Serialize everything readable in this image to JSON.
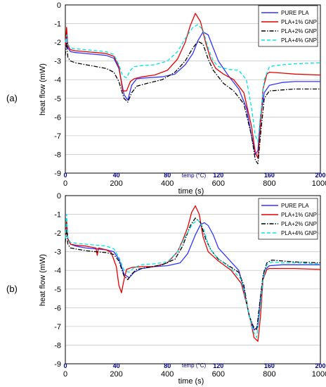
{
  "colors": {
    "pure_pla": "#3333ff",
    "pla_1_gnp": "#e60000",
    "pla_2_gnp": "#000000",
    "pla_4_gnp": "#00e5e5",
    "temp_axis": "#00008b",
    "grid": "#c8c8c8"
  },
  "chart_data": [
    {
      "panel_label": "(a)",
      "type": "line",
      "title": "",
      "ylabel": "heat flow (mW)",
      "xlabel": "time (s)",
      "xlim": [
        0,
        1000
      ],
      "ylim": [
        -9,
        0
      ],
      "xticks": [
        0,
        200,
        400,
        600,
        800,
        1000
      ],
      "yticks": [
        0,
        -1,
        -2,
        -3,
        -4,
        -5,
        -6,
        -7,
        -8,
        -9
      ],
      "grid": "horizontal",
      "legend_position": "top-right",
      "temp_axis": {
        "label": "temp (°C)",
        "ticks": [
          "0",
          "40",
          "80",
          "120",
          "160",
          "200"
        ]
      },
      "series": [
        {
          "name": "PURE PLA",
          "style": "solid",
          "color_key": "pure_pla",
          "x": [
            0,
            5,
            10,
            20,
            40,
            80,
            120,
            160,
            190,
            210,
            230,
            245,
            260,
            280,
            320,
            380,
            430,
            470,
            500,
            520,
            540,
            560,
            580,
            600,
            640,
            680,
            710,
            730,
            745,
            755,
            765,
            780,
            800,
            850,
            900,
            1000
          ],
          "y": [
            -2.3,
            -1.5,
            -2.3,
            -2.5,
            -2.55,
            -2.6,
            -2.65,
            -2.7,
            -2.85,
            -3.4,
            -4.8,
            -5.1,
            -4.3,
            -3.95,
            -3.9,
            -3.85,
            -3.7,
            -3.2,
            -2.6,
            -1.9,
            -1.45,
            -1.6,
            -2.3,
            -3.0,
            -3.8,
            -4.5,
            -5.5,
            -7.0,
            -8.0,
            -7.8,
            -6.0,
            -4.7,
            -4.3,
            -4.15,
            -4.1,
            -4.1
          ]
        },
        {
          "name": "PLA+1% GNP",
          "style": "solid",
          "color_key": "pla_1_gnp",
          "x": [
            0,
            5,
            10,
            20,
            40,
            80,
            120,
            160,
            190,
            210,
            225,
            240,
            255,
            270,
            300,
            350,
            400,
            440,
            470,
            490,
            510,
            530,
            550,
            570,
            590,
            620,
            660,
            700,
            730,
            745,
            755,
            765,
            775,
            790,
            800,
            850,
            900,
            1000
          ],
          "y": [
            -2.2,
            -1.2,
            -2.2,
            -2.4,
            -2.45,
            -2.5,
            -2.55,
            -2.6,
            -2.75,
            -3.3,
            -4.6,
            -4.6,
            -4.1,
            -3.95,
            -3.85,
            -3.75,
            -3.5,
            -2.9,
            -2.0,
            -1.1,
            -0.45,
            -0.9,
            -2.0,
            -2.9,
            -3.4,
            -3.7,
            -4.0,
            -4.7,
            -6.5,
            -7.9,
            -8.2,
            -6.5,
            -4.5,
            -3.7,
            -3.6,
            -3.65,
            -3.7,
            -3.75
          ]
        },
        {
          "name": "PLA+2% GNP",
          "style": "dashdot",
          "color_key": "pla_2_gnp",
          "x": [
            0,
            5,
            10,
            20,
            40,
            80,
            120,
            160,
            190,
            210,
            230,
            245,
            260,
            280,
            320,
            380,
            430,
            470,
            500,
            520,
            540,
            560,
            580,
            620,
            660,
            700,
            730,
            745,
            755,
            765,
            780,
            800,
            850,
            900,
            1000
          ],
          "y": [
            -2.7,
            -2.0,
            -2.8,
            -3.0,
            -3.1,
            -3.2,
            -3.3,
            -3.4,
            -3.6,
            -4.1,
            -5.0,
            -5.2,
            -4.7,
            -4.35,
            -4.2,
            -4.0,
            -3.6,
            -3.0,
            -2.3,
            -1.95,
            -2.1,
            -2.9,
            -3.5,
            -4.2,
            -4.6,
            -5.3,
            -7.0,
            -8.3,
            -8.5,
            -7.0,
            -5.0,
            -4.6,
            -4.55,
            -4.5,
            -4.5
          ]
        },
        {
          "name": "PLA+4% GNP",
          "style": "dashed",
          "color_key": "pla_4_gnp",
          "x": [
            0,
            5,
            10,
            20,
            40,
            80,
            120,
            160,
            190,
            210,
            225,
            240,
            255,
            270,
            300,
            350,
            400,
            440,
            470,
            500,
            520,
            540,
            560,
            580,
            600,
            640,
            680,
            710,
            730,
            745,
            755,
            765,
            780,
            800,
            850,
            900,
            1000
          ],
          "y": [
            -2.0,
            -1.6,
            -2.1,
            -2.3,
            -2.35,
            -2.4,
            -2.45,
            -2.5,
            -2.65,
            -3.2,
            -3.8,
            -3.9,
            -3.5,
            -3.3,
            -3.25,
            -3.2,
            -3.0,
            -2.5,
            -1.8,
            -1.2,
            -1.05,
            -1.35,
            -2.3,
            -3.0,
            -3.3,
            -3.45,
            -3.5,
            -4.0,
            -5.5,
            -7.0,
            -7.3,
            -6.0,
            -4.0,
            -3.3,
            -3.2,
            -3.15,
            -3.1
          ]
        }
      ]
    },
    {
      "panel_label": "(b)",
      "type": "line",
      "title": "",
      "ylabel": "heat flow (mW)",
      "xlabel": "time (s)",
      "xlim": [
        0,
        1000
      ],
      "ylim": [
        -9,
        0
      ],
      "xticks": [
        0,
        200,
        400,
        600,
        800,
        1000
      ],
      "yticks": [
        0,
        -1,
        -2,
        -3,
        -4,
        -5,
        -6,
        -7,
        -8,
        -9
      ],
      "grid": "horizontal",
      "legend_position": "top-right",
      "temp_axis": {
        "label": "temp (°C)",
        "ticks": [
          "0",
          "40",
          "80",
          "120",
          "160",
          "200"
        ]
      },
      "series": [
        {
          "name": "PURE PLA",
          "style": "solid",
          "color_key": "pure_pla",
          "x": [
            0,
            5,
            10,
            20,
            40,
            80,
            120,
            160,
            190,
            210,
            230,
            250,
            270,
            300,
            350,
            400,
            450,
            480,
            510,
            530,
            545,
            560,
            580,
            600,
            640,
            680,
            700,
            720,
            740,
            755,
            765,
            780,
            800,
            850,
            900,
            1000
          ],
          "y": [
            -2.3,
            -1.4,
            -2.3,
            -2.6,
            -2.7,
            -2.8,
            -2.85,
            -2.9,
            -3.0,
            -3.4,
            -4.2,
            -4.4,
            -4.1,
            -3.9,
            -3.8,
            -3.75,
            -3.6,
            -3.1,
            -2.1,
            -1.55,
            -1.45,
            -1.6,
            -2.1,
            -2.8,
            -3.4,
            -4.0,
            -5.0,
            -6.4,
            -7.2,
            -7.0,
            -5.5,
            -4.0,
            -3.75,
            -3.7,
            -3.7,
            -3.7
          ]
        },
        {
          "name": "PLA+1% GNP",
          "style": "solid",
          "color_key": "pla_1_gnp",
          "x": [
            0,
            5,
            10,
            20,
            40,
            80,
            120,
            125,
            130,
            160,
            180,
            200,
            210,
            220,
            230,
            240,
            260,
            300,
            350,
            400,
            440,
            460,
            480,
            495,
            510,
            525,
            540,
            560,
            600,
            650,
            690,
            720,
            740,
            755,
            765,
            775,
            790,
            800,
            850,
            900,
            1000
          ],
          "y": [
            -2.2,
            -1.3,
            -2.3,
            -2.6,
            -2.65,
            -2.7,
            -2.8,
            -3.2,
            -2.8,
            -2.9,
            -3.05,
            -3.8,
            -4.8,
            -5.2,
            -4.5,
            -3.95,
            -3.85,
            -3.8,
            -3.8,
            -3.6,
            -3.0,
            -2.4,
            -1.7,
            -0.9,
            -0.55,
            -1.0,
            -2.2,
            -3.0,
            -3.5,
            -4.0,
            -4.7,
            -6.3,
            -7.6,
            -7.8,
            -6.5,
            -4.5,
            -3.95,
            -3.9,
            -3.9,
            -3.9,
            -3.95
          ]
        },
        {
          "name": "PLA+2% GNP",
          "style": "dashdot",
          "color_key": "pla_2_gnp",
          "x": [
            0,
            5,
            10,
            20,
            40,
            80,
            120,
            160,
            190,
            210,
            230,
            245,
            260,
            280,
            320,
            380,
            430,
            460,
            490,
            510,
            530,
            550,
            570,
            600,
            640,
            680,
            700,
            720,
            740,
            750,
            760,
            775,
            790,
            810,
            850,
            900,
            1000
          ],
          "y": [
            -2.5,
            -1.8,
            -2.6,
            -2.8,
            -2.85,
            -2.95,
            -3.0,
            -3.05,
            -3.15,
            -3.5,
            -4.3,
            -4.5,
            -4.2,
            -3.95,
            -3.85,
            -3.7,
            -3.4,
            -2.7,
            -1.6,
            -1.2,
            -1.45,
            -2.3,
            -2.9,
            -3.4,
            -3.75,
            -4.1,
            -4.8,
            -6.4,
            -7.1,
            -7.2,
            -6.0,
            -4.3,
            -3.6,
            -3.45,
            -3.5,
            -3.55,
            -3.6
          ]
        },
        {
          "name": "PLA+4% GNP",
          "style": "dashed",
          "color_key": "pla_4_gnp",
          "x": [
            0,
            5,
            10,
            20,
            40,
            80,
            120,
            160,
            190,
            210,
            230,
            250,
            270,
            300,
            350,
            400,
            440,
            470,
            500,
            520,
            540,
            560,
            580,
            610,
            650,
            690,
            715,
            735,
            750,
            760,
            775,
            790,
            810,
            850,
            900,
            1000
          ],
          "y": [
            -2.3,
            -1.0,
            -2.3,
            -2.5,
            -2.55,
            -2.6,
            -2.65,
            -2.7,
            -2.85,
            -3.3,
            -4.0,
            -4.1,
            -3.85,
            -3.7,
            -3.65,
            -3.55,
            -3.0,
            -2.2,
            -1.5,
            -1.3,
            -1.7,
            -2.6,
            -3.1,
            -3.5,
            -3.9,
            -4.5,
            -6.0,
            -7.2,
            -7.6,
            -6.5,
            -4.5,
            -3.7,
            -3.55,
            -3.6,
            -3.6,
            -3.65
          ]
        }
      ]
    }
  ]
}
